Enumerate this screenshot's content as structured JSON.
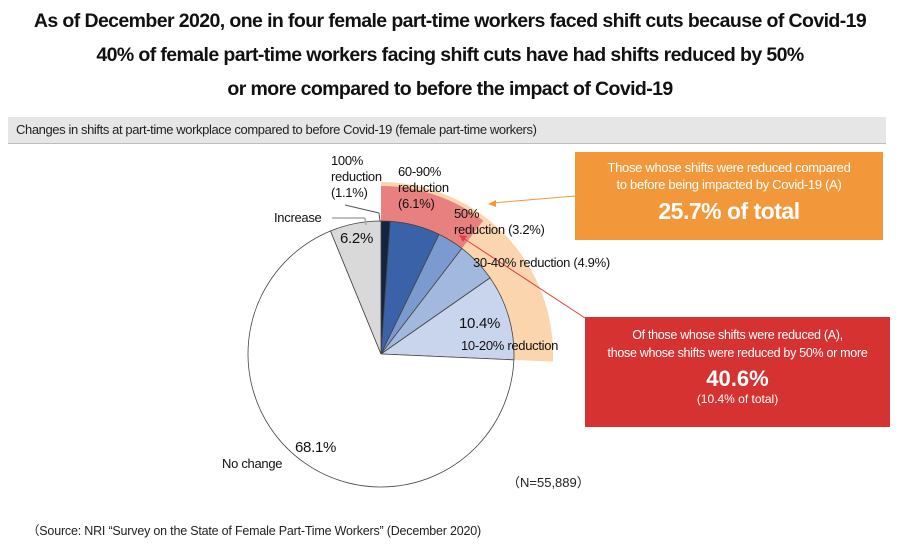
{
  "headline": {
    "line1": "As of December 2020, one in four female part-time workers faced shift cuts because of Covid-19",
    "line2": "40% of female part-time workers facing shift cuts have had shifts reduced by 50%",
    "line3": "or more compared to before the impact of Covid-19"
  },
  "subtitle": "Changes in shifts at part-time workplace compared to before Covid-19 (female part-time workers)",
  "chart_data": {
    "type": "pie",
    "title": "Changes in shifts at part-time workplace compared to before Covid-19 (female part-time workers)",
    "start_angle": "12 o'clock",
    "direction": "clockwise",
    "unit": "%",
    "slices": [
      {
        "name": "100% reduction",
        "value": 1.1,
        "color": "#14243f",
        "label_lines": [
          "100%",
          "reduction",
          "(1.1%)"
        ]
      },
      {
        "name": "60-90% reduction",
        "value": 6.1,
        "color": "#3a62a8",
        "label_lines": [
          "60-90%",
          "reduction",
          "(6.1%)"
        ]
      },
      {
        "name": "50% reduction",
        "value": 3.2,
        "color": "#7b9bd0",
        "label_lines": [
          "50%",
          "reduction (3.2%)"
        ]
      },
      {
        "name": "30-40% reduction",
        "value": 4.9,
        "color": "#a3b8de",
        "label_lines": [
          "30-40% reduction (4.9%)"
        ]
      },
      {
        "name": "10-20% reduction",
        "value": 10.4,
        "color": "#c9d5ec",
        "label_lines": [
          "10.4%",
          "10-20% reduction"
        ]
      },
      {
        "name": "No change",
        "value": 68.1,
        "color": "#ffffff",
        "label_lines": [
          "68.1%",
          "No change"
        ]
      },
      {
        "name": "Increase",
        "value": 6.2,
        "color": "#d9d9d9",
        "label_lines": [
          "6.2%",
          "Increase"
        ]
      }
    ],
    "highlight_bands": [
      {
        "name": "Shifts reduced (A)",
        "from_pct": 0,
        "to_pct": 25.7,
        "color": "#fad5ad"
      },
      {
        "name": "Reduced by 50% or more",
        "from_pct": 0,
        "to_pct": 10.4,
        "color": "#e88080"
      }
    ],
    "n": "N=55,889"
  },
  "labels": {
    "r100": [
      "100%",
      "reduction",
      "(1.1%)"
    ],
    "r6090": [
      "60-90%",
      "reduction",
      "(6.1%)"
    ],
    "r50": [
      "50%",
      "reduction (3.2%)"
    ],
    "r3040": "30-40% reduction (4.9%)",
    "r1020_pct": "10.4%",
    "r1020_name": "10-20% reduction",
    "increase_name": "Increase",
    "increase_pct": "6.2%",
    "nochange_pct": "68.1%",
    "nochange_name": "No change"
  },
  "callout_a": {
    "line1": "Those whose shifts were reduced compared",
    "line2": "to before being impacted by Covid-19 (A)",
    "value": "25.7% of total",
    "color": "#f2983a"
  },
  "callout_b": {
    "line1": "Of those whose shifts were reduced (A),",
    "line2": "those whose shifts were reduced by 50% or more",
    "value": "40.6%",
    "sub": "(10.4% of total)",
    "color": "#d63232"
  },
  "n_label": "（N=55,889）",
  "source": "（Source: NRI “Survey on the State of Female Part-Time Workers” (December 2020)"
}
